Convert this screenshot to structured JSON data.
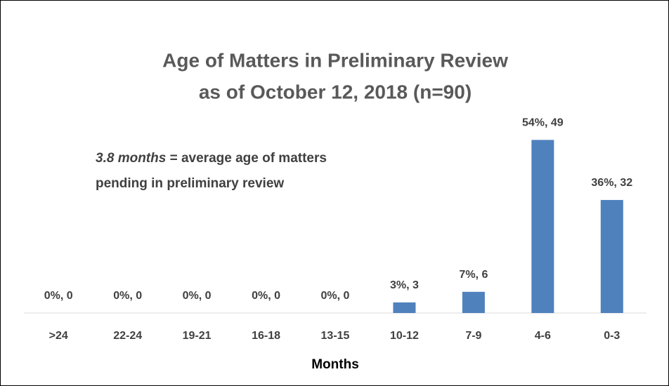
{
  "chart_data": {
    "type": "bar",
    "title": [
      "Age of Matters in Preliminary Review",
      "as of October 12, 2018 (n=90)"
    ],
    "annotation": {
      "emphasis": "3.8 months",
      "lines": [
        "= average age of matters",
        "pending in preliminary review"
      ]
    },
    "x_label": "Months",
    "categories": [
      ">24",
      "22-24",
      "19-21",
      "16-18",
      "13-15",
      "10-12",
      "7-9",
      "4-6",
      "0-3"
    ],
    "values": [
      0,
      0,
      0,
      0,
      0,
      3,
      6,
      49,
      32
    ],
    "value_labels": [
      "0%, 0",
      "0%, 0",
      "0%, 0",
      "0%, 0",
      "0%, 0",
      "3%, 3",
      "7%, 6",
      "54%, 49",
      "36%, 32"
    ],
    "color": "#4f81bd",
    "ylim": [
      0,
      60
    ]
  }
}
